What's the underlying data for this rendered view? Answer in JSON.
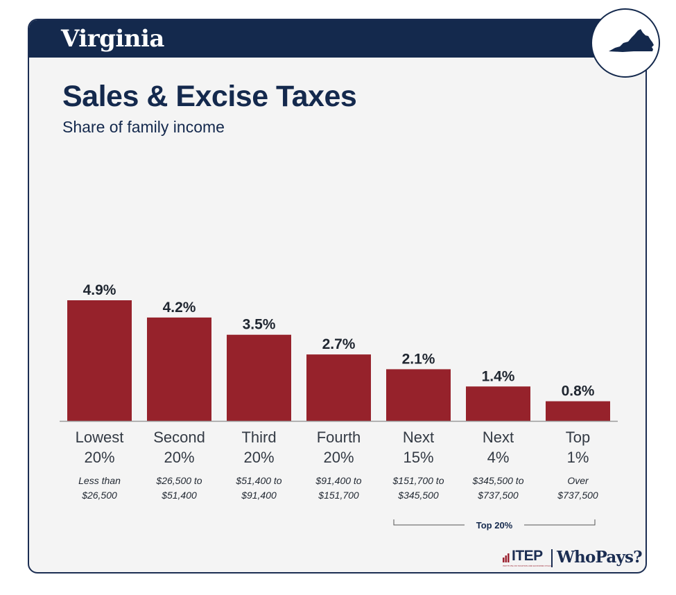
{
  "header": {
    "state": "Virginia"
  },
  "badge": {
    "icon": "virginia-state-icon"
  },
  "title": "Sales & Excise Taxes",
  "subtitle": "Share of family income",
  "colors": {
    "navy": "#14294d",
    "bar": "#96222b",
    "card_bg": "#f4f4f4"
  },
  "chart_data": {
    "type": "bar",
    "categories": [
      "Lowest 20%",
      "Second 20%",
      "Third 20%",
      "Fourth 20%",
      "Next 15%",
      "Next 4%",
      "Top 1%"
    ],
    "category_lines": [
      [
        "Lowest",
        "20%"
      ],
      [
        "Second",
        "20%"
      ],
      [
        "Third",
        "20%"
      ],
      [
        "Fourth",
        "20%"
      ],
      [
        "Next",
        "15%"
      ],
      [
        "Next",
        "4%"
      ],
      [
        "Top",
        "1%"
      ]
    ],
    "income_ranges": [
      [
        "Less than",
        "$26,500"
      ],
      [
        "$26,500 to",
        "$51,400"
      ],
      [
        "$51,400 to",
        "$91,400"
      ],
      [
        "$91,400 to",
        "$151,700"
      ],
      [
        "$151,700 to",
        "$345,500"
      ],
      [
        "$345,500 to",
        "$737,500"
      ],
      [
        "Over",
        "$737,500"
      ]
    ],
    "values": [
      4.9,
      4.2,
      3.5,
      2.7,
      2.1,
      1.4,
      0.8
    ],
    "value_labels": [
      "4.9%",
      "4.2%",
      "3.5%",
      "2.7%",
      "2.1%",
      "1.4%",
      "0.8%"
    ],
    "unit": "%",
    "ylim": [
      0,
      4.9
    ],
    "bracket": {
      "label": "Top 20%",
      "from_category": 4,
      "to_category": 6
    }
  },
  "footer": {
    "itep": "ITEP",
    "itep_subline": "INSTITUTE ON TAXATION AND ECONOMIC POLICY",
    "whopays": "WhoPays?"
  }
}
